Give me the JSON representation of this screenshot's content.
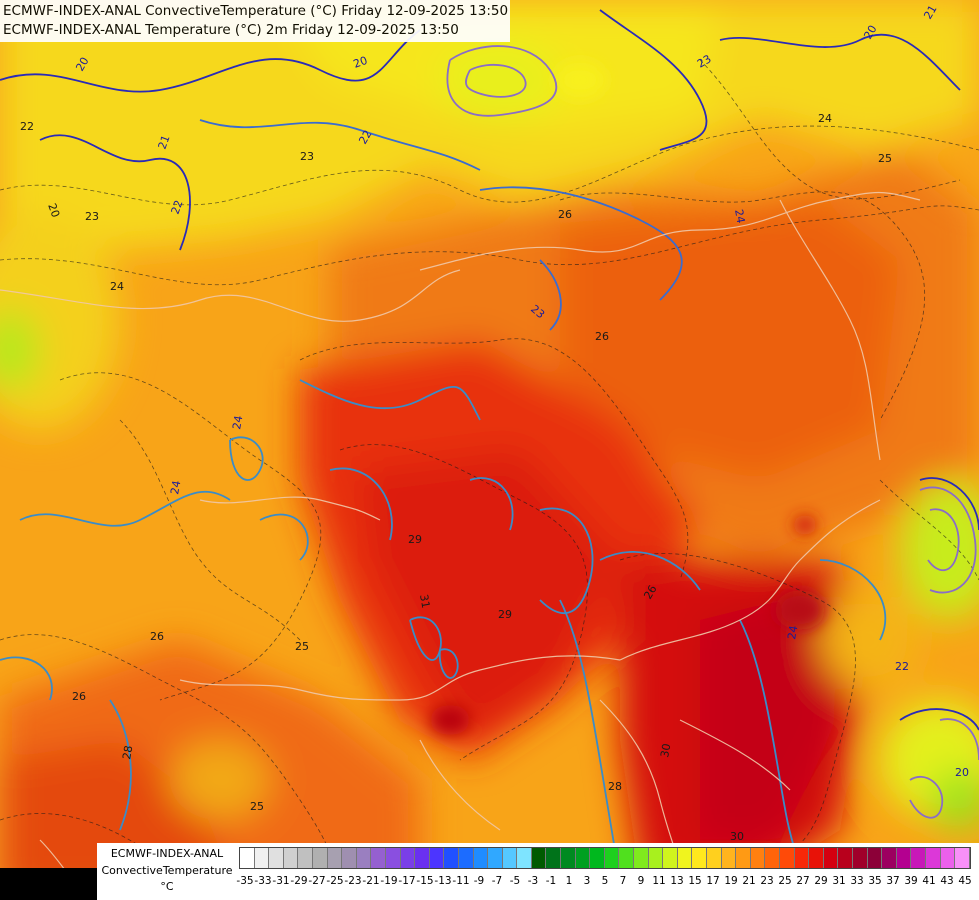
{
  "header": {
    "line1": "ECMWF-INDEX-ANAL ConvectiveTemperature (°C) Friday 12-09-2025 13:50",
    "line2": "ECMWF-INDEX-ANAL Temperature (°C) 2m Friday 12-09-2025 13:50"
  },
  "legend": {
    "model": "ECMWF-INDEX-ANAL",
    "parameter": "ConvectiveTemperature",
    "unit": "°C",
    "tick_labels": [
      "-35",
      "-33",
      "-31",
      "-29",
      "-27",
      "-25",
      "-23",
      "-21",
      "-19",
      "-17",
      "-15",
      "-13",
      "-11",
      "-9",
      "-7",
      "-5",
      "-3",
      "-1",
      "1",
      "3",
      "5",
      "7",
      "9",
      "11",
      "13",
      "15",
      "17",
      "19",
      "21",
      "23",
      "25",
      "27",
      "29",
      "31",
      "33",
      "35",
      "37",
      "39",
      "41",
      "43",
      "45"
    ],
    "colors": [
      "#ffffff",
      "#f0f0f0",
      "#e0e0e0",
      "#d0d0d0",
      "#c0c0c0",
      "#b0b0b0",
      "#a7a0b0",
      "#9f8fb0",
      "#9a7fc0",
      "#9560d0",
      "#8a4fe0",
      "#7a3fe8",
      "#6a30f0",
      "#4c35ff",
      "#2050ff",
      "#1c6cff",
      "#1f8cff",
      "#30a8ff",
      "#55c8ff",
      "#7ee4ff",
      "#005a00",
      "#00731a",
      "#008a20",
      "#00a020",
      "#00b81e",
      "#1ed01e",
      "#50e01e",
      "#80ea1e",
      "#a8f01e",
      "#d0f41e",
      "#f0f41e",
      "#ffe81e",
      "#ffd01e",
      "#ffb41e",
      "#ff9a14",
      "#ff8010",
      "#ff640a",
      "#ff4a08",
      "#f82808",
      "#e81208",
      "#d40010",
      "#b8001c",
      "#a0002a",
      "#8c0038",
      "#9c0060",
      "#b40090",
      "#c818b8",
      "#dc38d8",
      "#ec60ec",
      "#f890f8"
    ]
  },
  "contour_labels": {
    "blue": [
      "20",
      "20",
      "21",
      "22",
      "22",
      "23",
      "23",
      "24",
      "24",
      "24",
      "24",
      "22",
      "21",
      "20",
      "20"
    ],
    "black": [
      "20",
      "22",
      "23",
      "23",
      "24",
      "24",
      "25",
      "25",
      "25",
      "26",
      "26",
      "26",
      "26",
      "28",
      "28",
      "29",
      "29",
      "30",
      "31",
      "30",
      "26"
    ]
  }
}
